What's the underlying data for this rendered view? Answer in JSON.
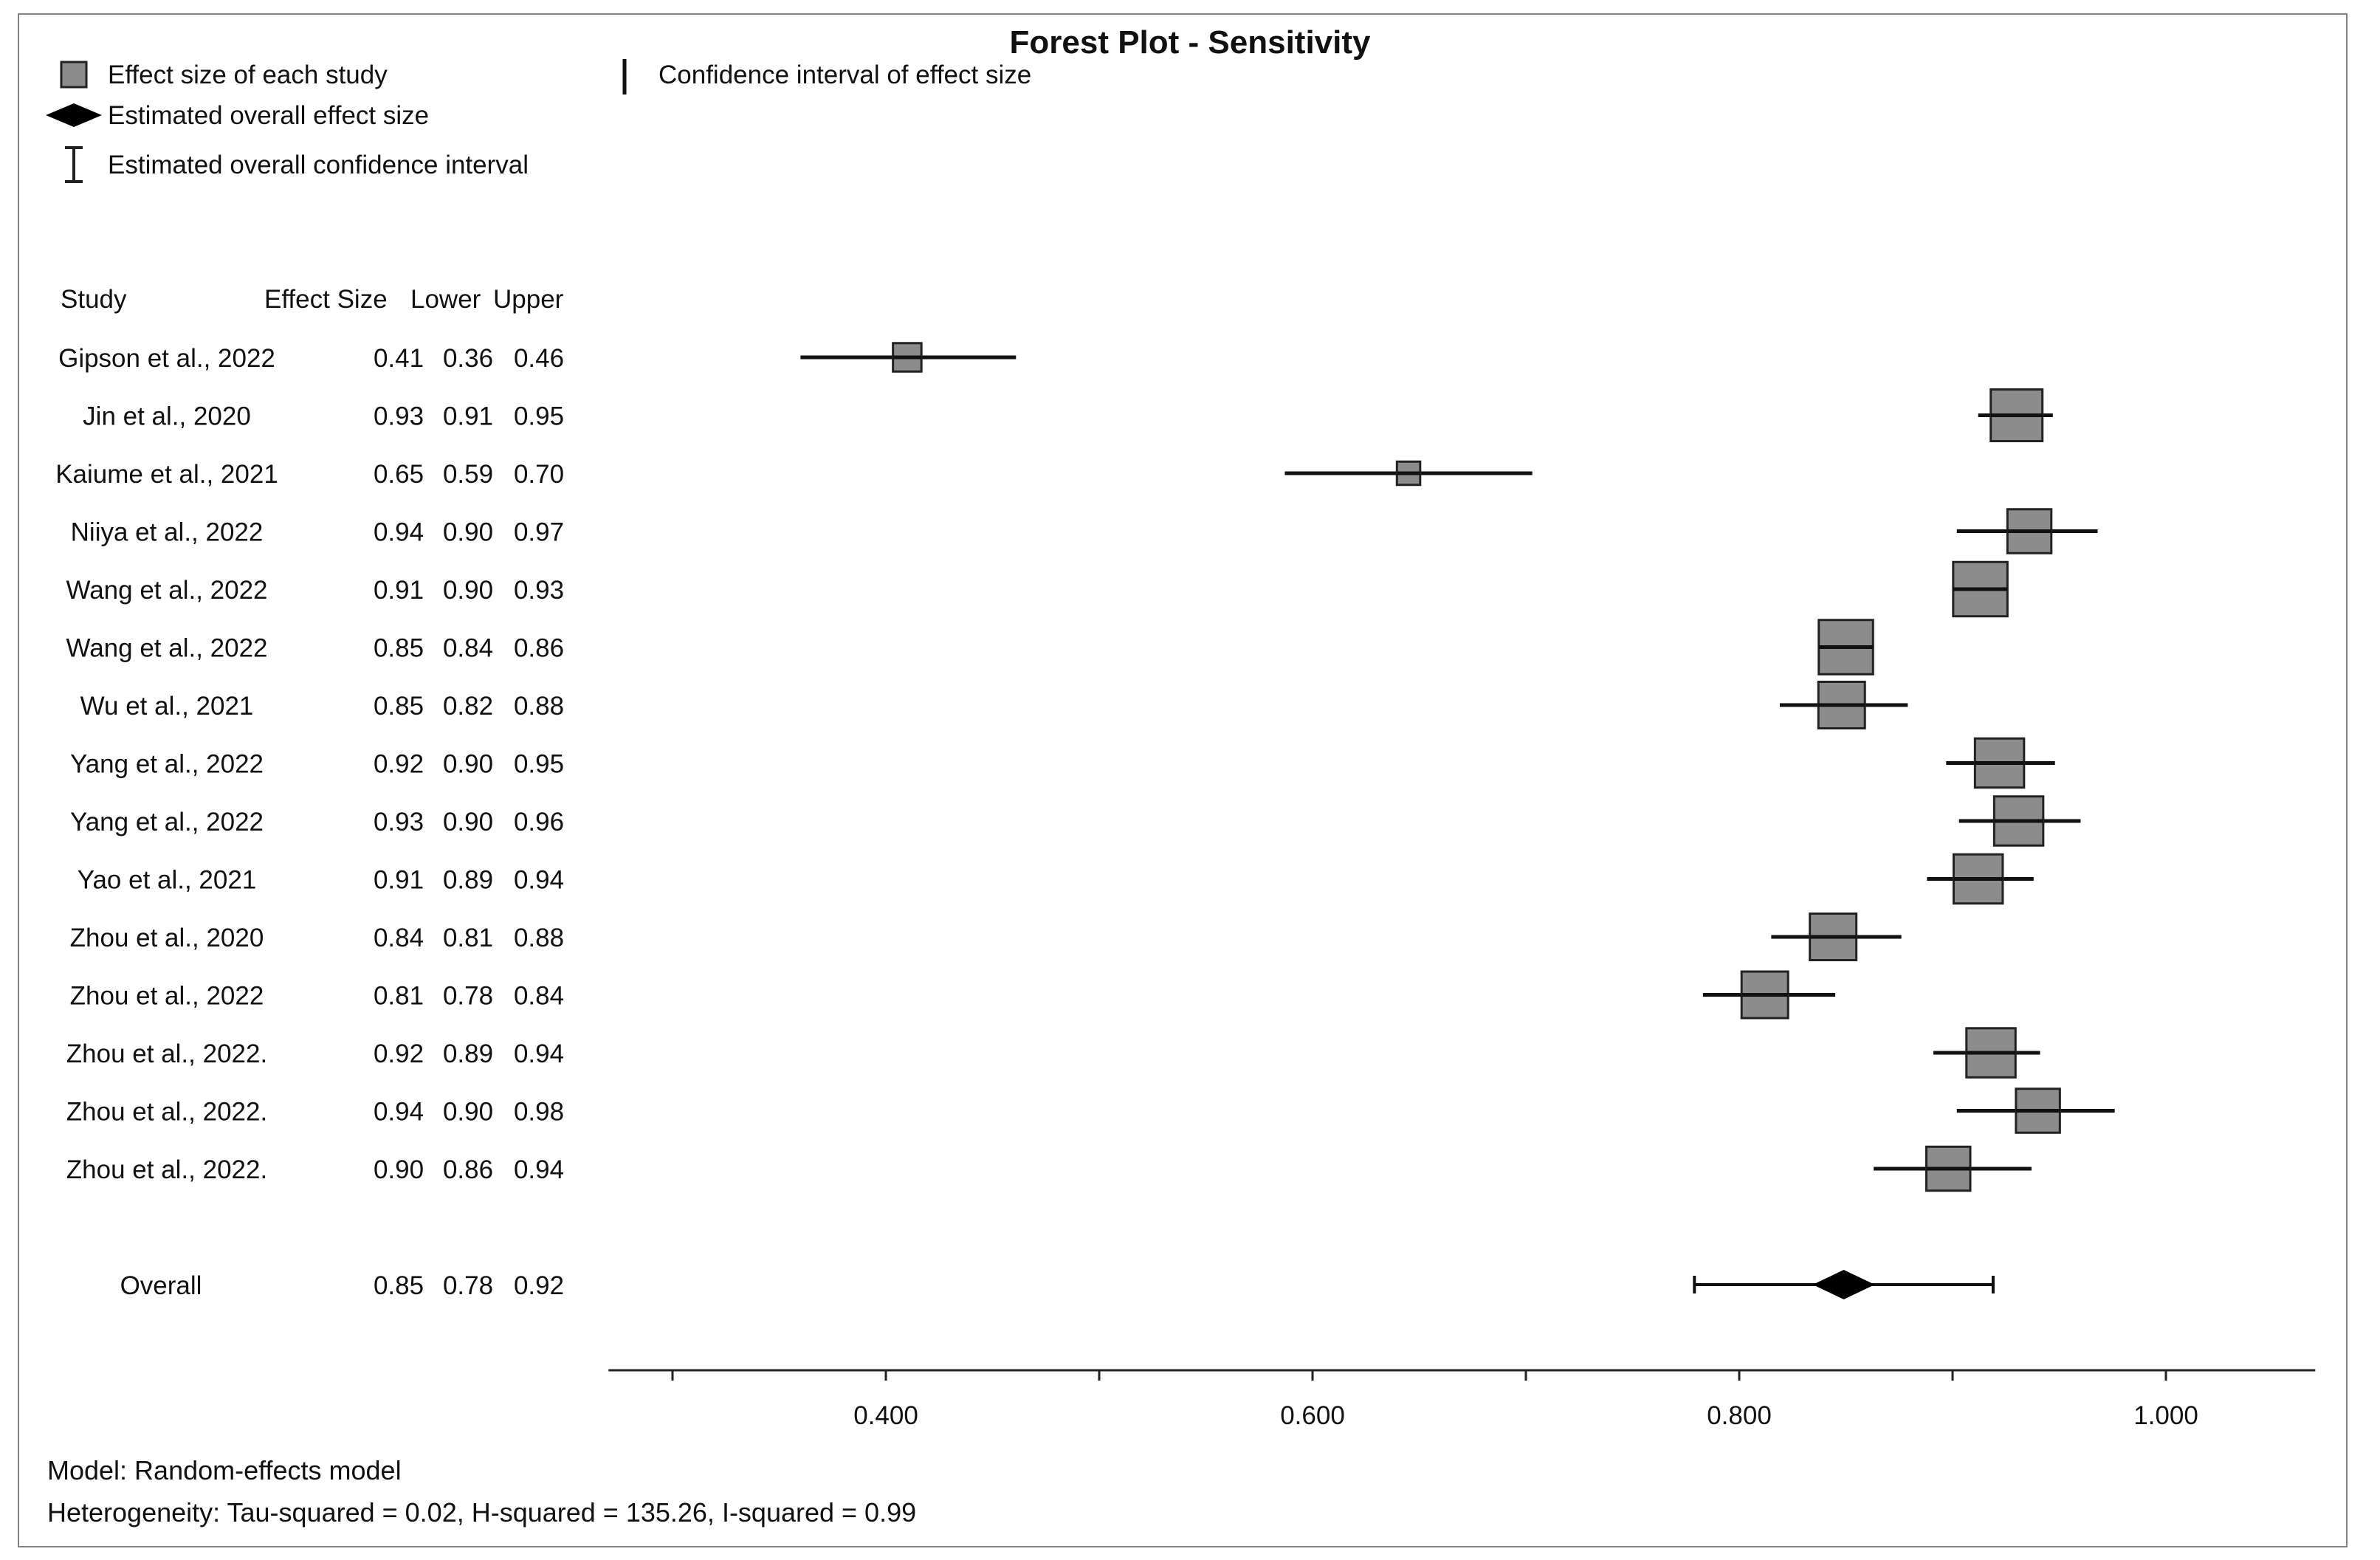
{
  "chart_data": {
    "type": "forest",
    "title": "Forest Plot - Sensitivity",
    "legend": {
      "study_marker": "Effect size of each study",
      "overall_marker": "Estimated overall effect size",
      "overall_ci": "Estimated overall confidence interval",
      "study_ci": "Confidence interval of effect size"
    },
    "columns": {
      "study": "Study",
      "effect": "Effect Size",
      "lower": "Lower",
      "upper": "Upper"
    },
    "studies": [
      {
        "name": "Gipson et al., 2022",
        "effect": "0.41",
        "lower": "0.36",
        "upper": "0.46",
        "es": 0.41,
        "lo": 0.36,
        "hi": 0.461,
        "weight": 0.55
      },
      {
        "name": "Jin et al., 2020",
        "effect": "0.93",
        "lower": "0.91",
        "upper": "0.95",
        "es": 0.93,
        "lo": 0.912,
        "hi": 0.947,
        "weight": 1.0
      },
      {
        "name": "Kaiume et al., 2021",
        "effect": "0.65",
        "lower": "0.59",
        "upper": "0.70",
        "es": 0.645,
        "lo": 0.587,
        "hi": 0.703,
        "weight": 0.45
      },
      {
        "name": "Niiya et al., 2022",
        "effect": "0.94",
        "lower": "0.90",
        "upper": "0.97",
        "es": 0.936,
        "lo": 0.902,
        "hi": 0.968,
        "weight": 0.85
      },
      {
        "name": "Wang et al., 2022",
        "effect": "0.91",
        "lower": "0.90",
        "upper": "0.93",
        "es": 0.913,
        "lo": 0.903,
        "hi": 0.925,
        "weight": 1.05
      },
      {
        "name": "Wang et al., 2022",
        "effect": "0.85",
        "lower": "0.84",
        "upper": "0.86",
        "es": 0.85,
        "lo": 0.84,
        "hi": 0.862,
        "weight": 1.05
      },
      {
        "name": "Wu et al., 2021",
        "effect": "0.85",
        "lower": "0.82",
        "upper": "0.88",
        "es": 0.848,
        "lo": 0.819,
        "hi": 0.879,
        "weight": 0.9
      },
      {
        "name": "Yang et al., 2022",
        "effect": "0.92",
        "lower": "0.90",
        "upper": "0.95",
        "es": 0.922,
        "lo": 0.897,
        "hi": 0.948,
        "weight": 0.95
      },
      {
        "name": "Yang et al., 2022",
        "effect": "0.93",
        "lower": "0.90",
        "upper": "0.96",
        "es": 0.931,
        "lo": 0.903,
        "hi": 0.96,
        "weight": 0.95
      },
      {
        "name": "Yao et al., 2021",
        "effect": "0.91",
        "lower": "0.89",
        "upper": "0.94",
        "es": 0.912,
        "lo": 0.888,
        "hi": 0.938,
        "weight": 0.95
      },
      {
        "name": "Zhou et al., 2020",
        "effect": "0.84",
        "lower": "0.81",
        "upper": "0.88",
        "es": 0.844,
        "lo": 0.815,
        "hi": 0.876,
        "weight": 0.9
      },
      {
        "name": "Zhou et al., 2022",
        "effect": "0.81",
        "lower": "0.78",
        "upper": "0.84",
        "es": 0.812,
        "lo": 0.783,
        "hi": 0.845,
        "weight": 0.9
      },
      {
        "name": "Zhou et al., 2022.",
        "effect": "0.92",
        "lower": "0.89",
        "upper": "0.94",
        "es": 0.918,
        "lo": 0.891,
        "hi": 0.941,
        "weight": 0.95
      },
      {
        "name": "Zhou et al., 2022.",
        "effect": "0.94",
        "lower": "0.90",
        "upper": "0.98",
        "es": 0.94,
        "lo": 0.902,
        "hi": 0.976,
        "weight": 0.85
      },
      {
        "name": "Zhou et al., 2022.",
        "effect": "0.90",
        "lower": "0.86",
        "upper": "0.94",
        "es": 0.898,
        "lo": 0.863,
        "hi": 0.937,
        "weight": 0.85
      }
    ],
    "overall": {
      "name": "Overall",
      "effect": "0.85",
      "lower": "0.78",
      "upper": "0.92",
      "es": 0.849,
      "lo": 0.779,
      "hi": 0.919
    },
    "xlim": [
      0.27,
      1.07
    ],
    "ticks": [
      {
        "value": 0.4,
        "label": "0.400"
      },
      {
        "value": 0.6,
        "label": "0.600"
      },
      {
        "value": 0.8,
        "label": "0.800"
      },
      {
        "value": 1.0,
        "label": "1.000"
      }
    ],
    "minor_ticks": [
      0.3,
      0.5,
      0.7,
      0.9
    ],
    "footer": {
      "model": "Model: Random-effects model",
      "heterogeneity": "Heterogeneity: Tau-squared = 0.02, H-squared = 135.26, I-squared = 0.99"
    },
    "colors": {
      "marker_fill": "#8c8c8c",
      "marker_stroke": "#222222",
      "line": "#111111",
      "diamond": "#000000"
    }
  }
}
